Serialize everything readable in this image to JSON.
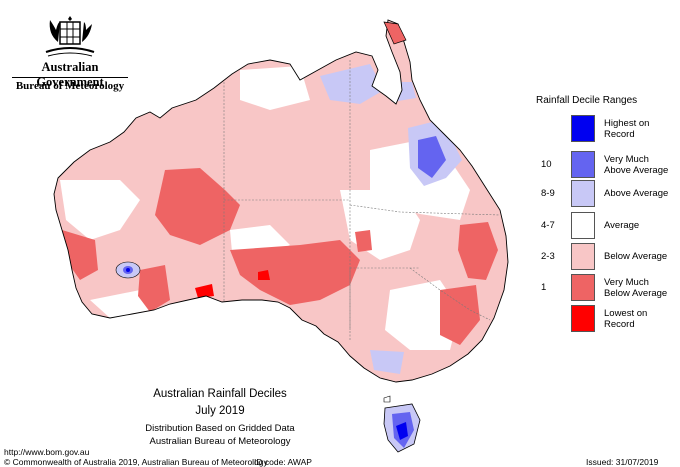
{
  "header": {
    "org_title": "Australian Government",
    "org_sub": "Bureau of Meteorology"
  },
  "legend": {
    "title": "Rainfall Decile Ranges",
    "items": [
      {
        "label": "Highest on\nRecord",
        "range": "",
        "color": "#0000f0"
      },
      {
        "label": "Very Much\nAbove Average",
        "range": "10",
        "color": "#6464f0"
      },
      {
        "label": "Above Average",
        "range": "8-9",
        "color": "#c8c8f6"
      },
      {
        "label": "Average",
        "range": "4-7",
        "color": "#ffffff"
      },
      {
        "label": "Below Average",
        "range": "2-3",
        "color": "#f8c6c6"
      },
      {
        "label": "Very Much\nBelow Average",
        "range": "1",
        "color": "#ee6464"
      },
      {
        "label": "Lowest on\nRecord",
        "range": "",
        "color": "#ff0000"
      }
    ]
  },
  "map": {
    "title": "Australian Rainfall Deciles",
    "date": "July 2019",
    "subtitle1": "Distribution Based on Gridded Data",
    "subtitle2": "Australian Bureau of Meteorology"
  },
  "footer": {
    "url": "http://www.bom.gov.au",
    "copyright": "© Commonwealth of Australia 2019, Australian Bureau of Meteorology",
    "id_code": "ID code: AWAP",
    "issued": "Issued: 31/07/2019"
  },
  "colors": {
    "below": "#f8c6c6",
    "very_below": "#ee6464",
    "lowest": "#ff0000",
    "above": "#c8c8f6",
    "very_above": "#6464f0",
    "highest": "#0000f0"
  }
}
